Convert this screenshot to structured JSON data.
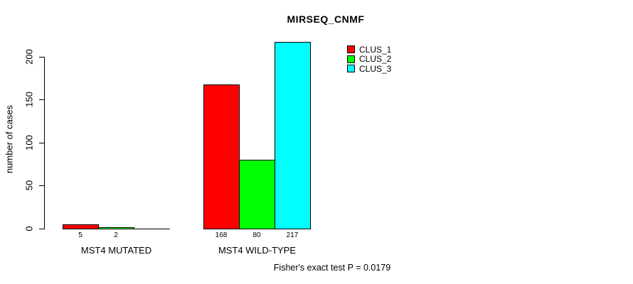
{
  "chart_data": {
    "type": "bar",
    "title": "MIRSEQ_CNMF",
    "ylabel": "number of cases",
    "xlabel": "",
    "yticks": [
      0,
      50,
      100,
      150,
      200
    ],
    "ylim": [
      0,
      220
    ],
    "grid": false,
    "legend_position": "top-right",
    "categories": [
      "MST4 MUTATED",
      "MST4 WILD-TYPE"
    ],
    "series": [
      {
        "name": "CLUS_1",
        "color": "#ff0000",
        "values": [
          5,
          168
        ]
      },
      {
        "name": "CLUS_2",
        "color": "#00ff00",
        "values": [
          2,
          80
        ]
      },
      {
        "name": "CLUS_3",
        "color": "#00ffff",
        "values": [
          0,
          217
        ]
      }
    ],
    "bar_value_labels": [
      [
        "5",
        "2",
        ""
      ],
      [
        "168",
        "80",
        "217"
      ]
    ],
    "footnote": "Fisher's exact test P = 0.0179",
    "axis_color": "#000000",
    "background_color": "#ffffff"
  }
}
